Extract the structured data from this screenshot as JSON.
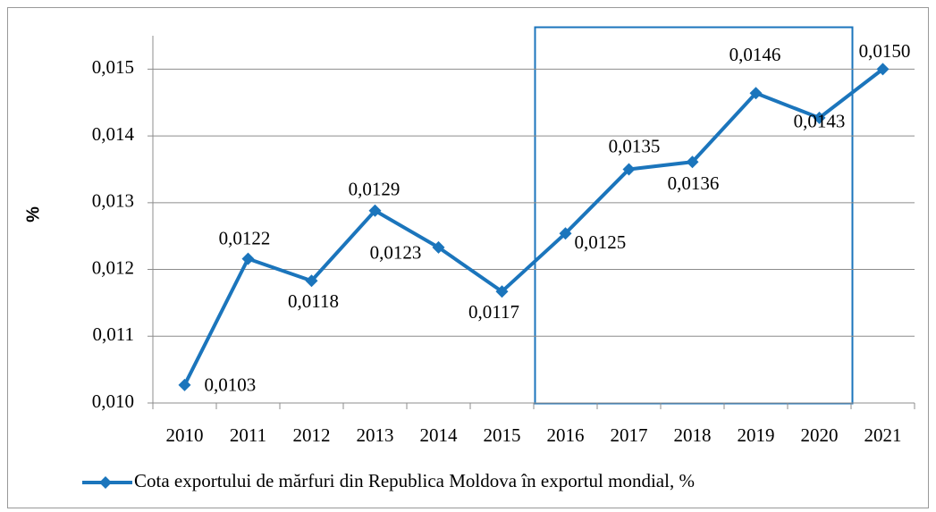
{
  "chart_data": {
    "type": "line",
    "categories": [
      "2010",
      "2011",
      "2012",
      "2013",
      "2014",
      "2015",
      "2016",
      "2017",
      "2018",
      "2019",
      "2020",
      "2021"
    ],
    "series": [
      {
        "name": "Cota exportului de mărfuri din Republica Moldova în exportul mondial, %",
        "color": "#1b75bc",
        "values": [
          0.01027,
          0.01216,
          0.01183,
          0.01288,
          0.01233,
          0.01167,
          0.01254,
          0.0135,
          0.01361,
          0.01464,
          0.01427,
          0.015
        ],
        "value_labels": [
          "0,0103",
          "0,0122",
          "0,0118",
          "0,0129",
          "0,0123",
          "0,0117",
          "0,0125",
          "0,0135",
          "0,0136",
          "0,0146",
          "0,0143",
          "0,0150"
        ]
      }
    ],
    "ylabel": "%",
    "ylim": [
      0.01,
      0.0155
    ],
    "yticks": [
      {
        "value": 0.01,
        "label": "0,010"
      },
      {
        "value": 0.011,
        "label": "0,011"
      },
      {
        "value": 0.012,
        "label": "0,012"
      },
      {
        "value": 0.013,
        "label": "0,013"
      },
      {
        "value": 0.014,
        "label": "0,014"
      },
      {
        "value": 0.015,
        "label": "0,015"
      }
    ],
    "grid": true,
    "legend": "bottom"
  }
}
